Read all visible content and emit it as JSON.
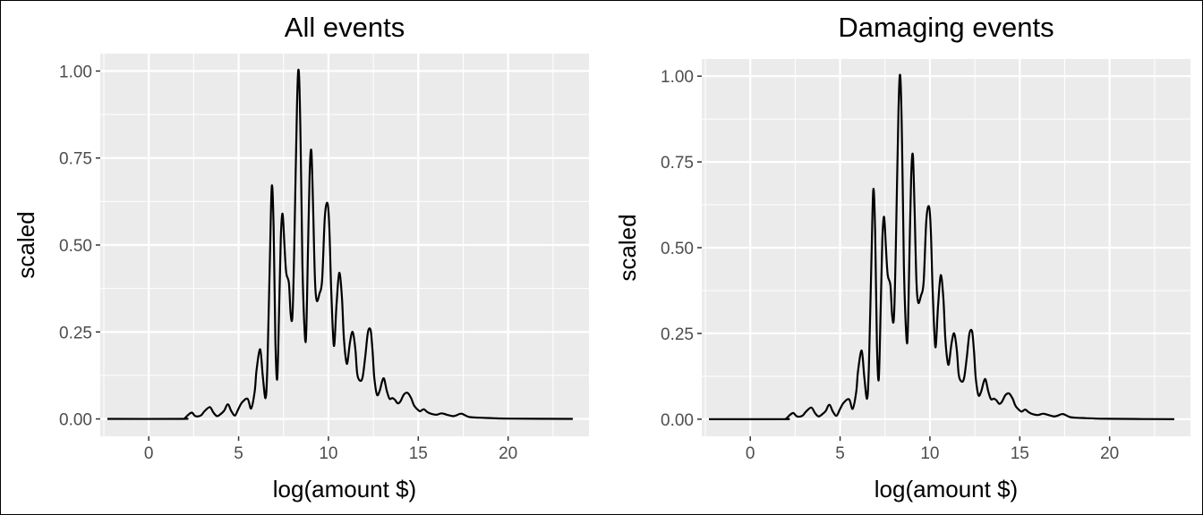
{
  "colors": {
    "panel_background": "#ebebeb",
    "grid": "#ffffff",
    "line": "#000000",
    "tick_text": "#4d4d4d"
  },
  "chart_data": [
    {
      "type": "line",
      "title": "All events",
      "xlabel": "log(amount $)",
      "ylabel": "scaled",
      "xlim": [
        -2.7,
        24.5
      ],
      "ylim": [
        -0.05,
        1.05
      ],
      "x_ticks": [
        0,
        5,
        10,
        15,
        20
      ],
      "x_tick_labels": [
        "0",
        "5",
        "10",
        "15",
        "20"
      ],
      "y_ticks": [
        0,
        0.25,
        0.5,
        0.75,
        1.0
      ],
      "y_tick_labels": [
        "0.00",
        "0.25",
        "0.50",
        "0.75",
        "1.00"
      ],
      "grid": true,
      "series": [
        {
          "x": [
            -2.3,
            1.8,
            2.0,
            2.2,
            2.4,
            2.6,
            2.9,
            3.1,
            3.4,
            3.6,
            3.8,
            4.0,
            4.2,
            4.4,
            4.6,
            4.8,
            5.0,
            5.2,
            5.5,
            5.7,
            5.9,
            6.0,
            6.2,
            6.35,
            6.5,
            6.6,
            6.75,
            6.85,
            6.95,
            7.05,
            7.15,
            7.25,
            7.35,
            7.45,
            7.55,
            7.65,
            7.8,
            7.9,
            8.0,
            8.1,
            8.25,
            8.35,
            8.45,
            8.55,
            8.65,
            8.75,
            8.85,
            8.95,
            9.05,
            9.15,
            9.25,
            9.35,
            9.5,
            9.65,
            9.8,
            9.95,
            10.05,
            10.15,
            10.3,
            10.45,
            10.6,
            10.75,
            10.85,
            10.95,
            11.05,
            11.2,
            11.35,
            11.5,
            11.6,
            11.75,
            11.9,
            12.05,
            12.2,
            12.35,
            12.45,
            12.55,
            12.7,
            12.85,
            13.0,
            13.1,
            13.25,
            13.4,
            13.55,
            13.7,
            13.85,
            14.0,
            14.2,
            14.4,
            14.6,
            14.75,
            14.9,
            15.1,
            15.3,
            15.5,
            15.7,
            16.0,
            16.3,
            16.6,
            16.9,
            17.1,
            17.4,
            17.8,
            18.2,
            18.7,
            19.2,
            20.0,
            23.6
          ],
          "y": [
            0.0,
            0.0,
            0.002,
            0.012,
            0.018,
            0.008,
            0.01,
            0.022,
            0.034,
            0.018,
            0.008,
            0.014,
            0.024,
            0.042,
            0.022,
            0.01,
            0.03,
            0.048,
            0.058,
            0.03,
            0.08,
            0.14,
            0.2,
            0.12,
            0.06,
            0.15,
            0.48,
            0.67,
            0.55,
            0.22,
            0.115,
            0.3,
            0.52,
            0.59,
            0.5,
            0.42,
            0.39,
            0.3,
            0.3,
            0.5,
            0.9,
            1.0,
            0.8,
            0.45,
            0.28,
            0.23,
            0.45,
            0.7,
            0.77,
            0.6,
            0.4,
            0.34,
            0.36,
            0.4,
            0.58,
            0.62,
            0.55,
            0.38,
            0.21,
            0.33,
            0.42,
            0.35,
            0.24,
            0.18,
            0.16,
            0.22,
            0.25,
            0.2,
            0.13,
            0.11,
            0.12,
            0.18,
            0.25,
            0.255,
            0.2,
            0.12,
            0.07,
            0.08,
            0.11,
            0.115,
            0.08,
            0.058,
            0.06,
            0.055,
            0.045,
            0.05,
            0.07,
            0.075,
            0.06,
            0.04,
            0.03,
            0.022,
            0.028,
            0.02,
            0.015,
            0.012,
            0.016,
            0.012,
            0.008,
            0.01,
            0.015,
            0.006,
            0.004,
            0.003,
            0.002,
            0.001,
            0.0
          ]
        }
      ]
    },
    {
      "type": "line",
      "title": "Damaging events",
      "xlabel": "log(amount $)",
      "ylabel": "scaled",
      "xlim": [
        -2.7,
        24.5
      ],
      "ylim": [
        -0.05,
        1.05
      ],
      "x_ticks": [
        0,
        5,
        10,
        15,
        20
      ],
      "x_tick_labels": [
        "0",
        "5",
        "10",
        "15",
        "20"
      ],
      "y_ticks": [
        0,
        0.25,
        0.5,
        0.75,
        1.0
      ],
      "y_tick_labels": [
        "0.00",
        "0.25",
        "0.50",
        "0.75",
        "1.00"
      ],
      "grid": true,
      "series": [
        {
          "x": [
            -2.3,
            1.8,
            2.0,
            2.2,
            2.4,
            2.6,
            2.9,
            3.1,
            3.4,
            3.6,
            3.8,
            4.0,
            4.2,
            4.4,
            4.6,
            4.8,
            5.0,
            5.2,
            5.5,
            5.7,
            5.9,
            6.0,
            6.2,
            6.35,
            6.5,
            6.6,
            6.75,
            6.85,
            6.95,
            7.05,
            7.15,
            7.25,
            7.35,
            7.45,
            7.55,
            7.65,
            7.8,
            7.9,
            8.0,
            8.1,
            8.25,
            8.35,
            8.45,
            8.55,
            8.65,
            8.75,
            8.85,
            8.95,
            9.05,
            9.15,
            9.25,
            9.35,
            9.5,
            9.65,
            9.8,
            9.95,
            10.05,
            10.15,
            10.3,
            10.45,
            10.6,
            10.75,
            10.85,
            10.95,
            11.05,
            11.2,
            11.35,
            11.5,
            11.6,
            11.75,
            11.9,
            12.05,
            12.2,
            12.35,
            12.45,
            12.55,
            12.7,
            12.85,
            13.0,
            13.1,
            13.25,
            13.4,
            13.55,
            13.7,
            13.85,
            14.0,
            14.2,
            14.4,
            14.6,
            14.75,
            14.9,
            15.1,
            15.3,
            15.5,
            15.7,
            16.0,
            16.3,
            16.6,
            16.9,
            17.1,
            17.4,
            17.8,
            18.2,
            18.7,
            19.2,
            20.0,
            23.6
          ],
          "y": [
            0.0,
            0.0,
            0.002,
            0.012,
            0.018,
            0.008,
            0.01,
            0.022,
            0.034,
            0.018,
            0.008,
            0.014,
            0.024,
            0.042,
            0.022,
            0.01,
            0.03,
            0.048,
            0.058,
            0.03,
            0.08,
            0.14,
            0.2,
            0.12,
            0.06,
            0.15,
            0.48,
            0.67,
            0.55,
            0.22,
            0.115,
            0.3,
            0.52,
            0.59,
            0.5,
            0.42,
            0.39,
            0.3,
            0.3,
            0.5,
            0.9,
            1.0,
            0.8,
            0.45,
            0.28,
            0.23,
            0.45,
            0.7,
            0.77,
            0.6,
            0.4,
            0.34,
            0.36,
            0.4,
            0.58,
            0.62,
            0.55,
            0.38,
            0.21,
            0.33,
            0.42,
            0.35,
            0.24,
            0.18,
            0.16,
            0.22,
            0.25,
            0.2,
            0.13,
            0.11,
            0.12,
            0.18,
            0.25,
            0.255,
            0.2,
            0.12,
            0.07,
            0.08,
            0.11,
            0.115,
            0.08,
            0.058,
            0.06,
            0.055,
            0.045,
            0.05,
            0.07,
            0.075,
            0.06,
            0.04,
            0.03,
            0.022,
            0.028,
            0.02,
            0.015,
            0.012,
            0.016,
            0.012,
            0.008,
            0.01,
            0.015,
            0.006,
            0.004,
            0.003,
            0.002,
            0.001,
            0.0
          ]
        }
      ]
    }
  ]
}
